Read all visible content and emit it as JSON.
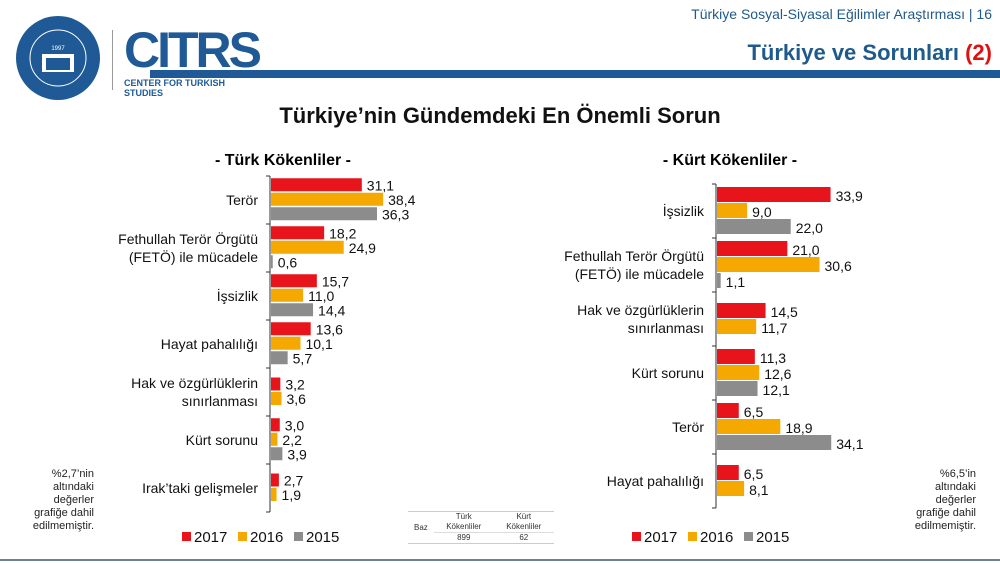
{
  "header": {
    "subtitle": "Türkiye Sosyal-Siyasal Eğilimler Araştırması | 16",
    "title": "Türkiye ve Sorunları",
    "title_suffix": "(2)",
    "logo_university": "KADİR HAS ÜNİVERSİTESİ 1997",
    "logo_citrs": "CITRS",
    "logo_citrs_caption": "CENTER FOR TURKISH STUDIES"
  },
  "main_title": "Türkiye’nin Gündemdeki En Önemli Sorun",
  "colors": {
    "2017": "#e8141c",
    "2016": "#f5a800",
    "2015": "#8c8c8c",
    "brand": "#1f5a96"
  },
  "chart_data": [
    {
      "type": "bar",
      "orientation": "horizontal",
      "title": "- Türk Kökenliler -",
      "categories": [
        "Terör",
        "Fethullah Terör Örgütü\n(FETÖ) ile mücadele",
        "İşsizlik",
        "Hayat pahalılığı",
        "Hak ve özgürlüklerin\nsınırlanması",
        "Kürt sorunu",
        "Irak’taki gelişmeler"
      ],
      "series": [
        {
          "name": "2017",
          "values": [
            31.1,
            18.2,
            15.7,
            13.6,
            3.2,
            3.0,
            2.7
          ],
          "labels": [
            "31,1",
            "18,2",
            "15,7",
            "13,6",
            "3,2",
            "3,0",
            "2,7"
          ]
        },
        {
          "name": "2016",
          "values": [
            38.4,
            24.9,
            11.0,
            10.1,
            3.6,
            2.2,
            1.9
          ],
          "labels": [
            "38,4",
            "24,9",
            "11,0",
            "10,1",
            "3,6",
            "2,2",
            "1,9"
          ]
        },
        {
          "name": "2015",
          "values": [
            36.3,
            0.6,
            14.4,
            5.7,
            null,
            3.9,
            null
          ],
          "labels": [
            "36,3",
            "0,6",
            "14,4",
            "5,7",
            null,
            "3,9",
            null
          ]
        }
      ],
      "legend": "bottom",
      "note": "%2,7’nin altındaki değerler grafiğe dahil edilmemiştir."
    },
    {
      "type": "bar",
      "orientation": "horizontal",
      "title": "- Kürt Kökenliler -",
      "categories": [
        "İşsizlik",
        "Fethullah Terör Örgütü\n(FETÖ) ile mücadele",
        "Hak ve özgürlüklerin\nsınırlanması",
        "Kürt sorunu",
        "Terör",
        "Hayat pahalılığı"
      ],
      "series": [
        {
          "name": "2017",
          "values": [
            33.9,
            21.0,
            14.5,
            11.3,
            6.5,
            6.5
          ],
          "labels": [
            "33,9",
            "21,0",
            "14,5",
            "11,3",
            "6,5",
            "6,5"
          ]
        },
        {
          "name": "2016",
          "values": [
            9.0,
            30.6,
            11.7,
            12.6,
            18.9,
            8.1
          ],
          "labels": [
            "9,0",
            "30,6",
            "11,7",
            "12,6",
            "18,9",
            "8,1"
          ]
        },
        {
          "name": "2015",
          "values": [
            22.0,
            1.1,
            null,
            12.1,
            34.1,
            null
          ],
          "labels": [
            "22,0",
            "1,1",
            null,
            "12,1",
            "34,1",
            null
          ]
        }
      ],
      "legend": "bottom",
      "note": "%6,5’in altındaki değerler grafiğe dahil edilmemiştir."
    }
  ],
  "base_table": {
    "row_label": "Baz",
    "columns": [
      "Türk Kökenliler",
      "Kürt Kökenliler"
    ],
    "values": [
      "899",
      "62"
    ]
  }
}
